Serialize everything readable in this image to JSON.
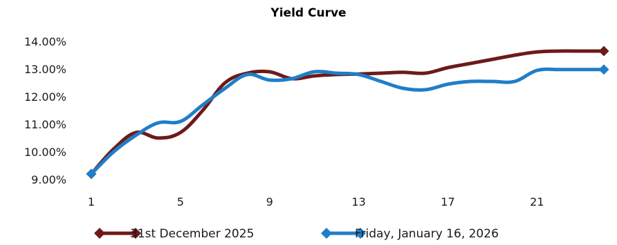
{
  "colors": {
    "series_1": "#6d1a1a",
    "series_2": "#1f7ec8"
  },
  "chart_data": {
    "type": "line",
    "title": "Yield Curve",
    "xlabel": "",
    "ylabel": "",
    "x": [
      1,
      2,
      3,
      4,
      5,
      6,
      7,
      8,
      9,
      10,
      11,
      12,
      13,
      14,
      15,
      16,
      17,
      18,
      19,
      20,
      21,
      22,
      23,
      24
    ],
    "xticks": [
      "1",
      "5",
      "9",
      "13",
      "17",
      "21"
    ],
    "yticks": [
      "9.00%",
      "10.00%",
      "11.00%",
      "12.00%",
      "13.00%",
      "14.00%"
    ],
    "ylim": [
      9.0,
      14.0
    ],
    "xlim": [
      1,
      24
    ],
    "grid": false,
    "legend_position": "bottom",
    "series": [
      {
        "name": "31st December 2025",
        "marker": "diamond",
        "values": [
          9.2,
          10.1,
          10.7,
          10.5,
          10.7,
          11.5,
          12.5,
          12.85,
          12.9,
          12.65,
          12.75,
          12.8,
          12.82,
          12.85,
          12.88,
          12.85,
          13.05,
          13.2,
          13.35,
          13.5,
          13.62,
          13.65,
          13.65,
          13.65
        ]
      },
      {
        "name": "Friday, January 16, 2026",
        "marker": "diamond",
        "values": [
          9.2,
          10.0,
          10.6,
          11.05,
          11.1,
          11.7,
          12.3,
          12.8,
          12.6,
          12.65,
          12.9,
          12.85,
          12.8,
          12.55,
          12.3,
          12.25,
          12.45,
          12.55,
          12.55,
          12.55,
          12.95,
          12.98,
          12.98,
          12.98
        ]
      }
    ]
  }
}
